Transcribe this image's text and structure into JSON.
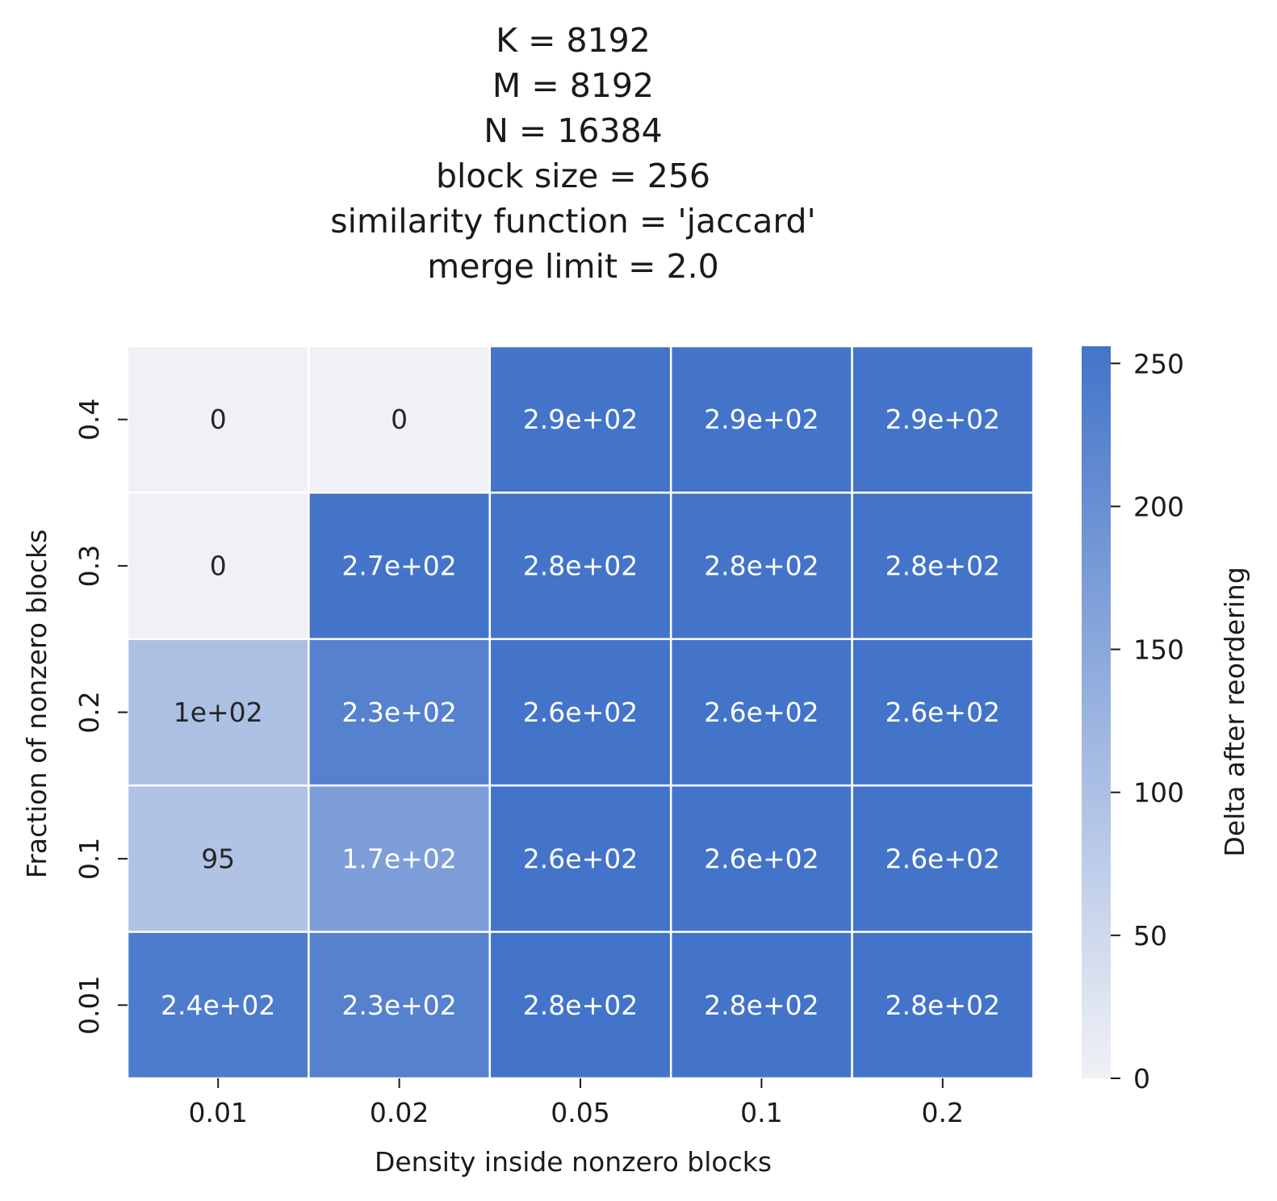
{
  "chart_data": {
    "type": "heatmap",
    "title_lines": [
      "K = 8192",
      "M = 8192",
      "N = 16384",
      "block size = 256",
      "similarity function = 'jaccard'",
      "merge limit = 2.0"
    ],
    "xlabel": "Density inside nonzero blocks",
    "ylabel": "Fraction of nonzero blocks",
    "x_categories": [
      "0.01",
      "0.02",
      "0.05",
      "0.1",
      "0.2"
    ],
    "y_categories": [
      "0.4",
      "0.3",
      "0.2",
      "0.1",
      "0.01"
    ],
    "values": [
      [
        0,
        0,
        290,
        290,
        290
      ],
      [
        0,
        270,
        280,
        280,
        280
      ],
      [
        100,
        230,
        260,
        260,
        260
      ],
      [
        95,
        170,
        260,
        260,
        260
      ],
      [
        240,
        230,
        280,
        280,
        280
      ]
    ],
    "cell_labels": [
      [
        "0",
        "0",
        "2.9e+02",
        "2.9e+02",
        "2.9e+02"
      ],
      [
        "0",
        "2.7e+02",
        "2.8e+02",
        "2.8e+02",
        "2.8e+02"
      ],
      [
        "1e+02",
        "2.3e+02",
        "2.6e+02",
        "2.6e+02",
        "2.6e+02"
      ],
      [
        "95",
        "1.7e+02",
        "2.6e+02",
        "2.6e+02",
        "2.6e+02"
      ],
      [
        "2.4e+02",
        "2.3e+02",
        "2.8e+02",
        "2.8e+02",
        "2.8e+02"
      ]
    ],
    "colorbar": {
      "label": "Delta after reordering",
      "range": [
        0,
        256
      ],
      "ticks": [
        0,
        50,
        100,
        150,
        200,
        250
      ],
      "tick_labels": [
        "0",
        "50",
        "100",
        "150",
        "200",
        "250"
      ],
      "color_low": "#f0f1f6",
      "color_high": "#4374c9"
    },
    "grid": false
  }
}
